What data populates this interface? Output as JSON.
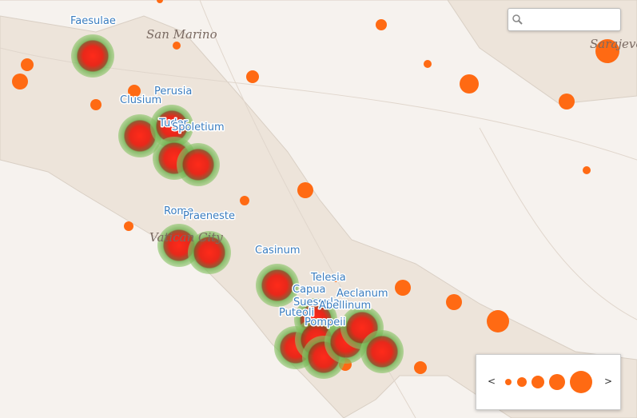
{
  "places": [
    "Faesulae",
    "Perusia",
    "Clusium",
    "Tuder",
    "Spoletium",
    "Rome",
    "Praeneste",
    "Casinum",
    "Telesia",
    "Capua",
    "Aeclanum",
    "Suessula",
    "Abellinum",
    "Puteoli",
    "Pompeii"
  ],
  "map_labels": [
    "San Marino",
    "Vatican City",
    "Sarajevo"
  ],
  "legend": {
    "prev": "<",
    "next": ">"
  }
}
